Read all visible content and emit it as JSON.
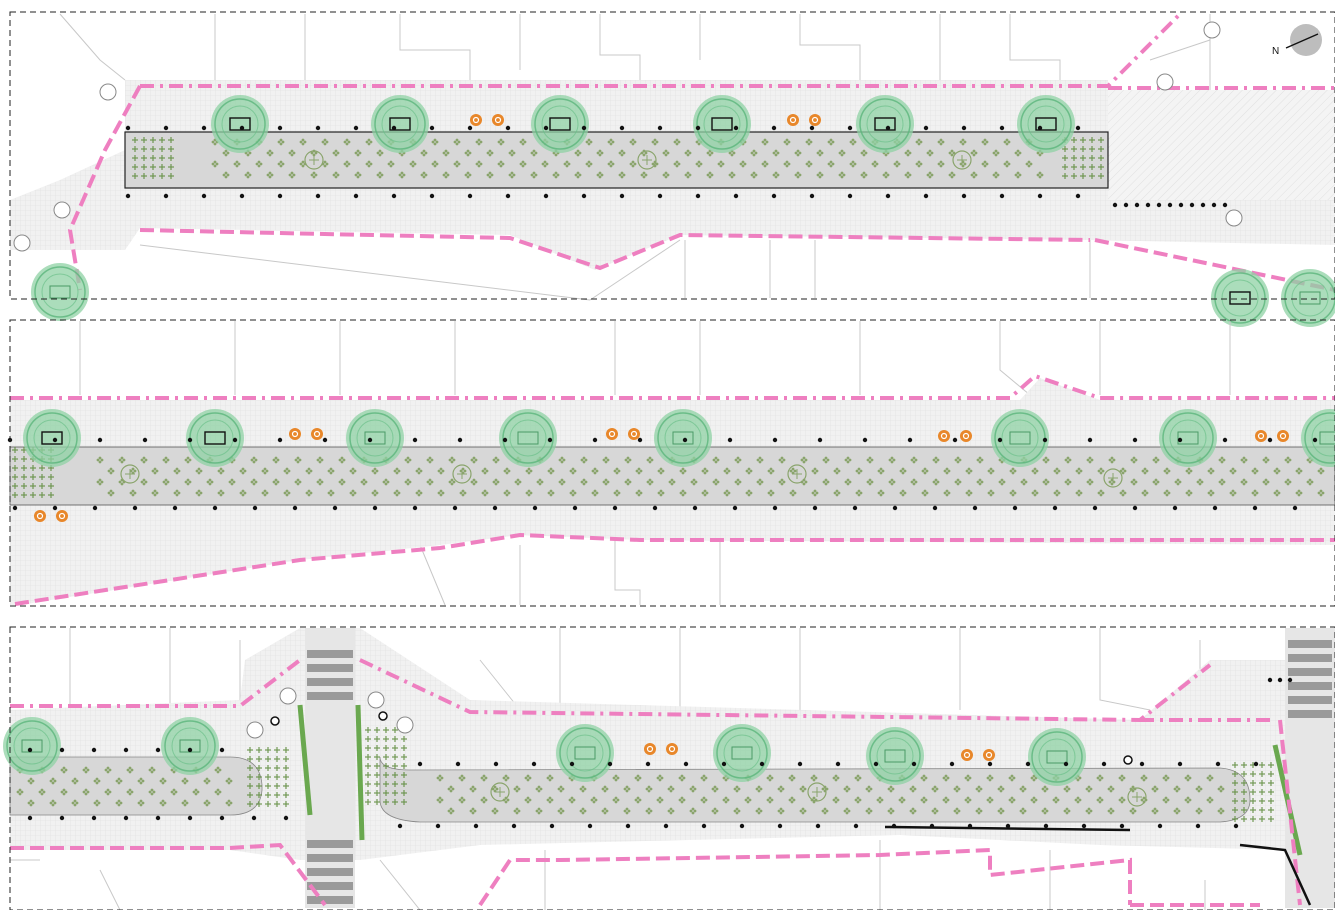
{
  "plan": {
    "north_arrow_label": "N",
    "colors": {
      "background": "#ffffff",
      "building_lines": "#c8c8c8",
      "paving": "#ececec",
      "pavement_pattern": "#d9d9d9",
      "median": "#cfcfcf",
      "median_plants": "#7d9c5a",
      "tree_canopy": "#8fd1a4",
      "tree_ring": "#5bb57c",
      "boundary_dash": "#ee7fc0",
      "bollards": "#111111",
      "bike_racks": "#e8872a",
      "crosswalk": "#9a9a9a",
      "green_edge": "#6aa84f",
      "sheet_frame": "#222222"
    },
    "legend_items": []
  }
}
